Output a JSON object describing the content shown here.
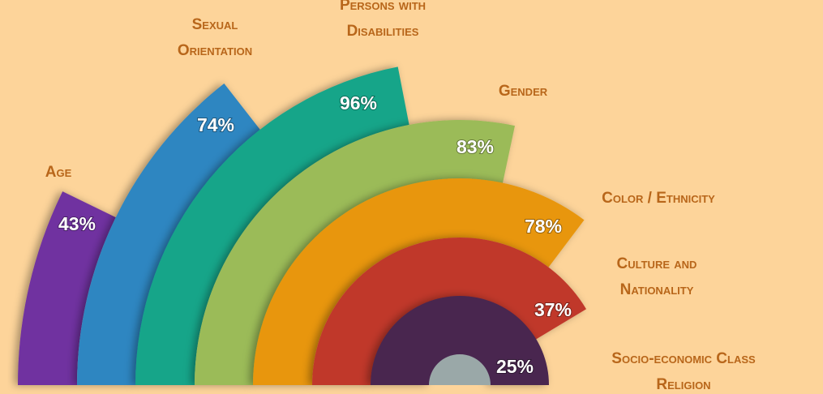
{
  "items": [
    {
      "label": [
        "Age"
      ],
      "value": "43%"
    },
    {
      "label": [
        "Sexual",
        "Orientation"
      ],
      "value": "74%"
    },
    {
      "label": [
        "Persons with",
        "Disabilities"
      ],
      "value": "96%"
    },
    {
      "label": [
        "Gender"
      ],
      "value": "83%"
    },
    {
      "label": [
        "Color / Ethnicity"
      ],
      "value": "78%"
    },
    {
      "label": [
        "Culture and",
        "Nationality"
      ],
      "value": "37%"
    },
    {
      "label": [
        "Socio-economic Class"
      ],
      "value": "25%"
    },
    {
      "label": [
        "Religion"
      ]
    }
  ]
}
